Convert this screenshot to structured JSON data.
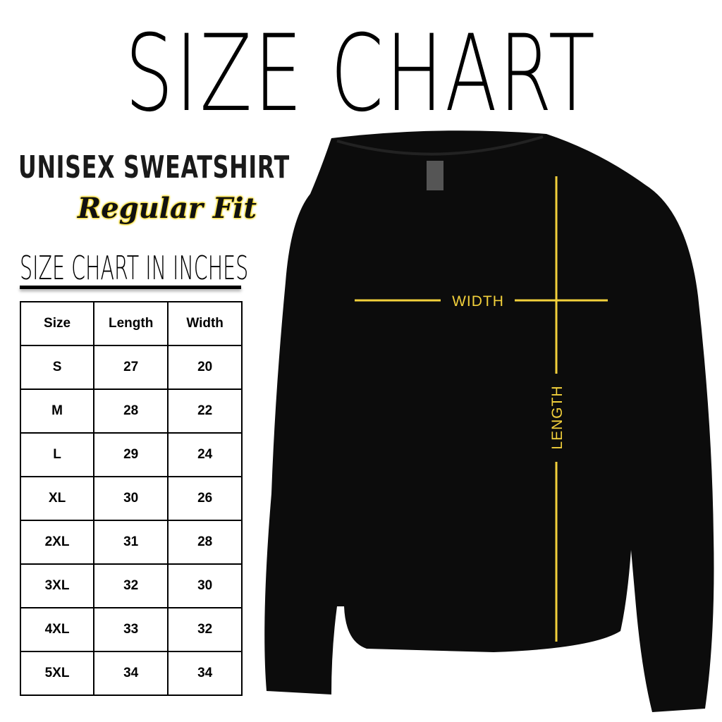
{
  "title": "SIZE CHART",
  "product": "UNISEX SWEATSHIRT",
  "fit": "Regular Fit",
  "chart_heading": "SIZE CHART IN INCHES",
  "colors": {
    "accent": "#f2d03b",
    "shirt": "#0c0c0c"
  },
  "chart_data": {
    "type": "table",
    "columns": [
      "Size",
      "Length",
      "Width"
    ],
    "rows": [
      [
        "S",
        "27",
        "20"
      ],
      [
        "M",
        "28",
        "22"
      ],
      [
        "L",
        "29",
        "24"
      ],
      [
        "XL",
        "30",
        "26"
      ],
      [
        "2XL",
        "31",
        "28"
      ],
      [
        "3XL",
        "32",
        "30"
      ],
      [
        "4XL",
        "33",
        "32"
      ],
      [
        "5XL",
        "34",
        "34"
      ]
    ]
  },
  "diagram": {
    "width_label": "WIDTH",
    "length_label": "LENGTH"
  }
}
